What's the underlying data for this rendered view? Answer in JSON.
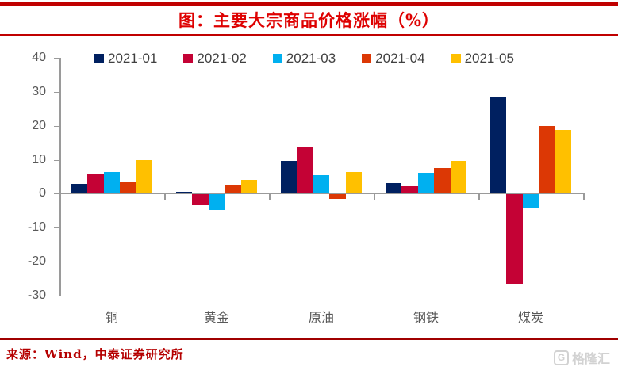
{
  "header": {
    "title": "图：主要大宗商品价格涨幅（%）"
  },
  "chart_data": {
    "type": "bar",
    "title": "图：主要大宗商品价格涨幅（%）",
    "categories": [
      "铜",
      "黄金",
      "原油",
      "钢铁",
      "煤炭"
    ],
    "series": [
      {
        "name": "2021-01",
        "color": "#002060",
        "values": [
          2.8,
          0.6,
          9.6,
          3.1,
          28.6
        ]
      },
      {
        "name": "2021-02",
        "color": "#C40235",
        "values": [
          6.0,
          -3.5,
          13.8,
          2.1,
          -26.4
        ]
      },
      {
        "name": "2021-03",
        "color": "#00B0F0",
        "values": [
          6.5,
          -4.9,
          5.4,
          6.1,
          -4.3
        ]
      },
      {
        "name": "2021-04",
        "color": "#DC3805",
        "values": [
          3.6,
          2.5,
          -1.6,
          7.5,
          20.0
        ]
      },
      {
        "name": "2021-05",
        "color": "#FFC000",
        "values": [
          10.0,
          4.0,
          6.3,
          9.7,
          18.8
        ]
      }
    ],
    "ylim": [
      -30,
      40
    ],
    "yticks": [
      40,
      30,
      20,
      10,
      0,
      -10,
      -20,
      -30
    ],
    "grid": false,
    "legend_position": "top",
    "xlabel": "",
    "ylabel": ""
  },
  "footer": {
    "source": "来源：Wind，中泰证券研究所"
  },
  "watermark": {
    "logo_letter": "G",
    "text": "格隆汇"
  },
  "colors": {
    "title_red": "#de0000",
    "rule_red": "#c00000",
    "axis_gray": "#9a9a9a",
    "label_gray": "#595959",
    "footer_red": "#b50000",
    "watermark_gray": "#d2d2d2"
  }
}
